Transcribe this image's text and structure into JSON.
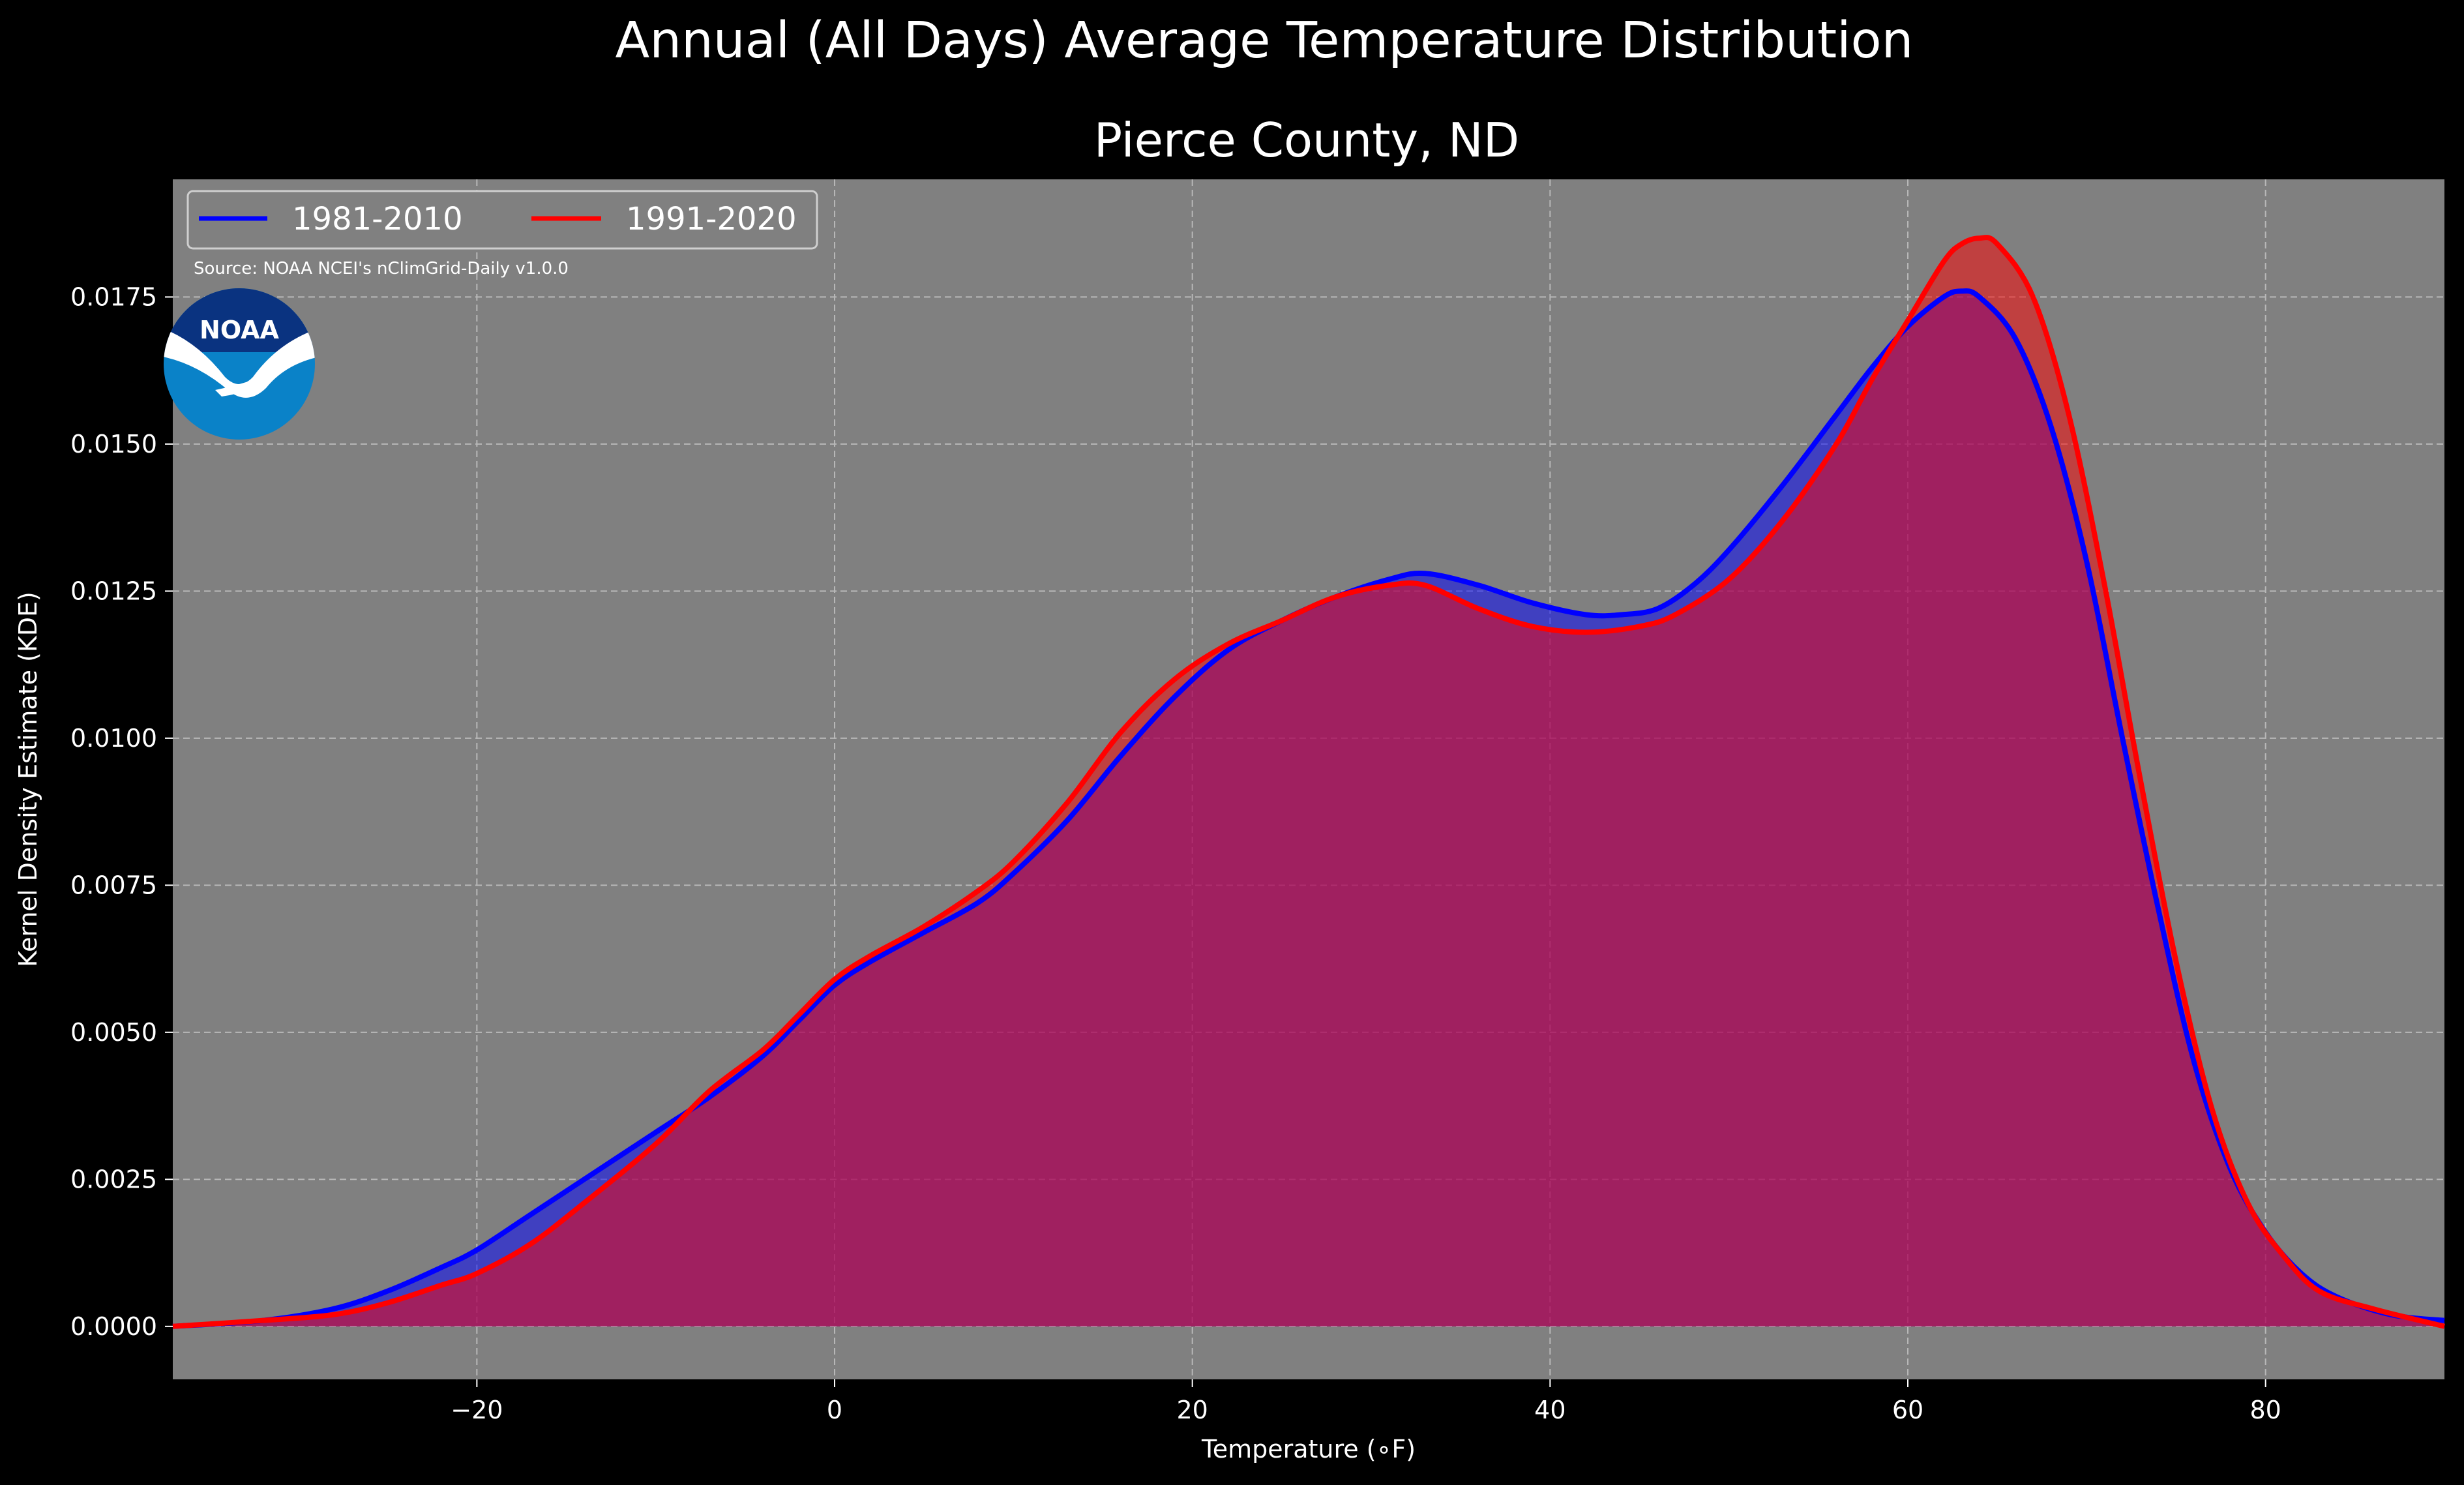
{
  "title": "Annual (All Days) Average Temperature Distribution",
  "subtitle": "Pierce County, ND",
  "source_note": "Source: NOAA NCEI's nClimGrid-Daily v1.0.0",
  "logo": {
    "icon": "noaa-logo",
    "text": "NOAA"
  },
  "colors": {
    "background": "#000000",
    "plot_background": "#808080",
    "text": "#ffffff",
    "series_1981_2010": "#0000ff",
    "series_1991_2020": "#ff0000",
    "logo_dark": "#0a3380",
    "logo_light": "#0a82c8"
  },
  "chart_data": {
    "type": "area",
    "title": "Annual (All Days) Average Temperature Distribution",
    "subtitle": "Pierce County, ND",
    "xlabel": "Temperature ($^\\circ$F)",
    "xlabel_display": "Temperature (∘F)",
    "ylabel": "Kernel Density Estimate (KDE)",
    "xlim": [
      -37,
      90
    ],
    "ylim": [
      -0.0009,
      0.0195
    ],
    "x_ticks": [
      -20,
      0,
      20,
      40,
      60,
      80
    ],
    "x_tick_labels": [
      "−20",
      "0",
      "20",
      "40",
      "60",
      "80"
    ],
    "y_ticks": [
      0,
      0.0025,
      0.005,
      0.0075,
      0.01,
      0.0125,
      0.015,
      0.0175
    ],
    "y_tick_labels": [
      "0.0000",
      "0.0025",
      "0.0050",
      "0.0075",
      "0.0100",
      "0.0125",
      "0.0150",
      "0.0175"
    ],
    "grid": true,
    "legend_position": "top-left",
    "series": [
      {
        "name": "1981-2010",
        "color": "#0000ff",
        "points": [
          [
            -37,
            0.0
          ],
          [
            -32,
            0.0001
          ],
          [
            -28,
            0.0003
          ],
          [
            -25,
            0.0006
          ],
          [
            -22,
            0.001
          ],
          [
            -20,
            0.0013
          ],
          [
            -17,
            0.0019
          ],
          [
            -14,
            0.0025
          ],
          [
            -10,
            0.0033
          ],
          [
            -7,
            0.0039
          ],
          [
            -4,
            0.0046
          ],
          [
            -2,
            0.0052
          ],
          [
            0,
            0.0058
          ],
          [
            2,
            0.0062
          ],
          [
            5,
            0.0067
          ],
          [
            8,
            0.0072
          ],
          [
            10,
            0.0077
          ],
          [
            13,
            0.0086
          ],
          [
            16,
            0.0097
          ],
          [
            19,
            0.0107
          ],
          [
            22,
            0.0115
          ],
          [
            25,
            0.012
          ],
          [
            28,
            0.0124
          ],
          [
            31,
            0.0127
          ],
          [
            33,
            0.0128
          ],
          [
            36,
            0.0126
          ],
          [
            39,
            0.0123
          ],
          [
            42,
            0.0121
          ],
          [
            44,
            0.0121
          ],
          [
            46,
            0.0122
          ],
          [
            48,
            0.0126
          ],
          [
            50,
            0.0132
          ],
          [
            53,
            0.0143
          ],
          [
            56,
            0.0155
          ],
          [
            58,
            0.0163
          ],
          [
            60,
            0.017
          ],
          [
            62,
            0.0175
          ],
          [
            63,
            0.0176
          ],
          [
            64,
            0.0175
          ],
          [
            66,
            0.0168
          ],
          [
            68,
            0.0153
          ],
          [
            70,
            0.013
          ],
          [
            72,
            0.01
          ],
          [
            74,
            0.0071
          ],
          [
            76,
            0.0045
          ],
          [
            78,
            0.0027
          ],
          [
            80,
            0.0016
          ],
          [
            82,
            0.0009
          ],
          [
            84,
            0.0005
          ],
          [
            87,
            0.0002
          ],
          [
            90,
            0.0001
          ]
        ]
      },
      {
        "name": "1991-2020",
        "color": "#ff0000",
        "points": [
          [
            -37,
            0.0
          ],
          [
            -32,
            0.0001
          ],
          [
            -28,
            0.0002
          ],
          [
            -25,
            0.0004
          ],
          [
            -22,
            0.0007
          ],
          [
            -20,
            0.0009
          ],
          [
            -17,
            0.0014
          ],
          [
            -14,
            0.0021
          ],
          [
            -10,
            0.0031
          ],
          [
            -7,
            0.004
          ],
          [
            -4,
            0.0047
          ],
          [
            -2,
            0.0053
          ],
          [
            0,
            0.0059
          ],
          [
            2,
            0.0063
          ],
          [
            5,
            0.0068
          ],
          [
            8,
            0.0074
          ],
          [
            10,
            0.0079
          ],
          [
            13,
            0.0089
          ],
          [
            16,
            0.0101
          ],
          [
            19,
            0.011
          ],
          [
            22,
            0.0116
          ],
          [
            25,
            0.012
          ],
          [
            28,
            0.0124
          ],
          [
            31,
            0.0126
          ],
          [
            33,
            0.0126
          ],
          [
            36,
            0.0122
          ],
          [
            39,
            0.0119
          ],
          [
            42,
            0.0118
          ],
          [
            45,
            0.0119
          ],
          [
            47,
            0.0121
          ],
          [
            50,
            0.0127
          ],
          [
            53,
            0.0137
          ],
          [
            56,
            0.015
          ],
          [
            58,
            0.0161
          ],
          [
            60,
            0.0171
          ],
          [
            62,
            0.0181
          ],
          [
            63,
            0.0184
          ],
          [
            64,
            0.0185
          ],
          [
            65,
            0.0184
          ],
          [
            67,
            0.0175
          ],
          [
            69,
            0.0155
          ],
          [
            71,
            0.0126
          ],
          [
            73,
            0.0093
          ],
          [
            75,
            0.0062
          ],
          [
            77,
            0.0037
          ],
          [
            79,
            0.0021
          ],
          [
            81,
            0.0012
          ],
          [
            83,
            0.0006
          ],
          [
            86,
            0.0003
          ],
          [
            90,
            0.0
          ]
        ]
      }
    ]
  }
}
